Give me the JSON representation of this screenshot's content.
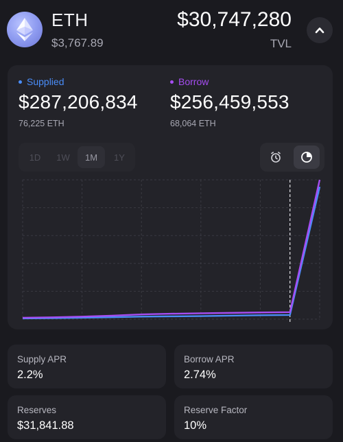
{
  "asset": {
    "name": "ETH",
    "price": "$3,767.89",
    "tvl_value": "$30,747,280",
    "tvl_label": "TVL"
  },
  "supplied": {
    "label": "Supplied",
    "amount": "$287,206,834",
    "tokens": "76,225 ETH",
    "color": "#4a8df8"
  },
  "borrow": {
    "label": "Borrow",
    "amount": "$256,459,553",
    "tokens": "68,064 ETH",
    "color": "#a64df2"
  },
  "range_tabs": [
    "1D",
    "1W",
    "1M",
    "1Y"
  ],
  "active_range": "1M",
  "view_toggle": [
    "clock-icon",
    "pie-chart-icon"
  ],
  "chart_data": {
    "type": "line",
    "x": [
      0,
      1,
      2,
      3,
      4,
      5,
      6,
      7,
      8,
      9,
      10
    ],
    "series": [
      {
        "name": "Supplied",
        "color": "#4a8df8",
        "values": [
          0.5,
          0.7,
          1,
          1.4,
          1.8,
          2,
          2.2,
          2.5,
          2.8,
          3,
          95
        ]
      },
      {
        "name": "Borrow",
        "color": "#a64df2",
        "values": [
          1,
          1.3,
          1.8,
          2.5,
          3.4,
          3.9,
          4.2,
          4.5,
          4.8,
          5,
          100
        ]
      }
    ],
    "ylim": [
      0,
      100
    ],
    "grid": true,
    "marker_line_at_x": 9
  },
  "stats": [
    {
      "label": "Supply APR",
      "value": "2.2%"
    },
    {
      "label": "Borrow APR",
      "value": "2.74%"
    },
    {
      "label": "Reserves",
      "value": "$31,841.88"
    },
    {
      "label": "Reserve Factor",
      "value": "10%"
    }
  ]
}
